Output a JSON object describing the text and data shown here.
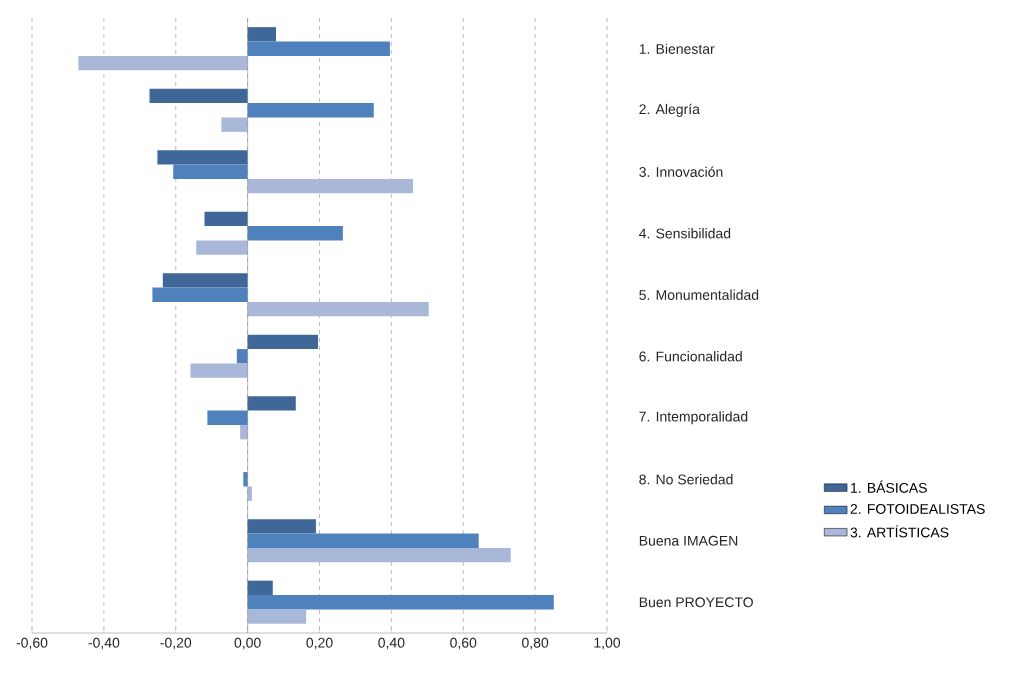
{
  "chart_data": {
    "type": "bar",
    "orientation": "horizontal",
    "categories": [
      "1. Bienestar",
      "2. Alegría",
      "3. Innovación",
      "4. Sensibilidad",
      "5. Monumentalidad",
      "6. Funcionalidad",
      "7. Intemporalidad",
      "8. No Seriedad",
      "Buena IMAGEN",
      "Buen PROYECTO"
    ],
    "series": [
      {
        "name": "1. BÁSICAS",
        "color": "#3f6899",
        "values": [
          0.079,
          -0.273,
          -0.251,
          -0.12,
          -0.236,
          0.196,
          0.134,
          null,
          0.19,
          0.07
        ]
      },
      {
        "name": "2. FOTOIDEALISTAS",
        "color": "#4f81bd",
        "values": [
          0.396,
          0.351,
          -0.207,
          0.265,
          -0.265,
          -0.03,
          -0.112,
          -0.012,
          0.643,
          0.852
        ]
      },
      {
        "name": "3. ARTÍSTICAS",
        "color": "#a9b8d8",
        "values": [
          -0.471,
          -0.073,
          0.46,
          -0.143,
          0.504,
          -0.159,
          -0.021,
          0.012,
          0.732,
          0.163
        ]
      }
    ],
    "xlim": [
      -0.6,
      1.0
    ],
    "xticks": [
      {
        "value": -0.6,
        "label": "-0,60"
      },
      {
        "value": -0.4,
        "label": "-0,40"
      },
      {
        "value": -0.2,
        "label": "-0,20"
      },
      {
        "value": 0,
        "label": "0,00"
      },
      {
        "value": 0.2,
        "label": "0,20"
      },
      {
        "value": 0.4,
        "label": "0,40"
      },
      {
        "value": 0.6,
        "label": "0,60"
      },
      {
        "value": 0.8,
        "label": "0,80"
      },
      {
        "value": 1.0,
        "label": "1,00"
      }
    ],
    "grid": "x",
    "legend": "right"
  }
}
